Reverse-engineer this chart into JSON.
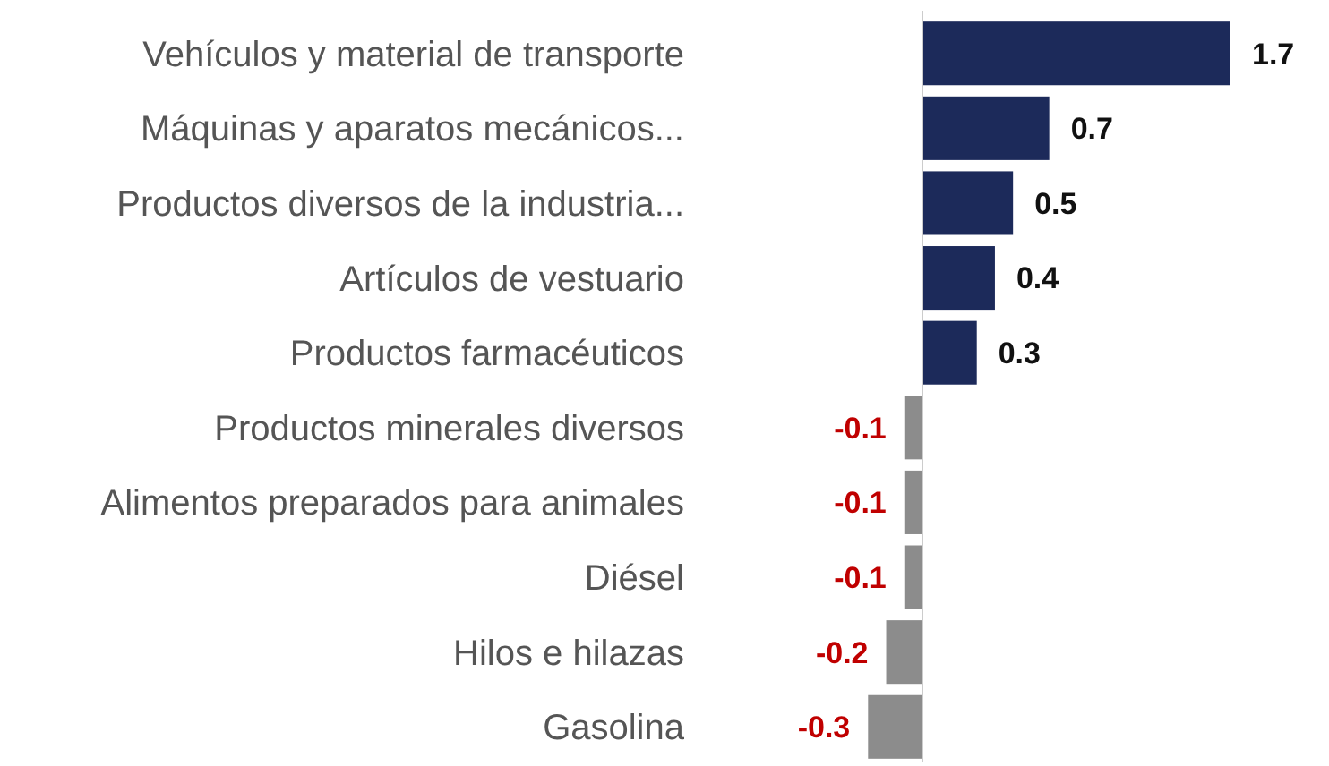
{
  "chart_data": {
    "type": "bar",
    "orientation": "horizontal",
    "categories": [
      "Vehículos y material de transporte",
      "Máquinas y aparatos mecánicos...",
      "Productos diversos de la industria...",
      "Artículos de vestuario",
      "Productos farmacéuticos",
      "Productos minerales diversos",
      "Alimentos preparados para animales",
      "Diésel",
      "Hilos e hilazas",
      "Gasolina"
    ],
    "values": [
      1.7,
      0.7,
      0.5,
      0.4,
      0.3,
      -0.1,
      -0.1,
      -0.1,
      -0.2,
      -0.3
    ],
    "colors": [
      "#1c2a5a",
      "#1c2a5a",
      "#1c2a5a",
      "#1c2a5a",
      "#1c2a5a",
      "#8c8c8c",
      "#8c8c8c",
      "#8c8c8c",
      "#8c8c8c",
      "#8c8c8c"
    ],
    "data_labels": true,
    "tick_labels": "y"
  }
}
